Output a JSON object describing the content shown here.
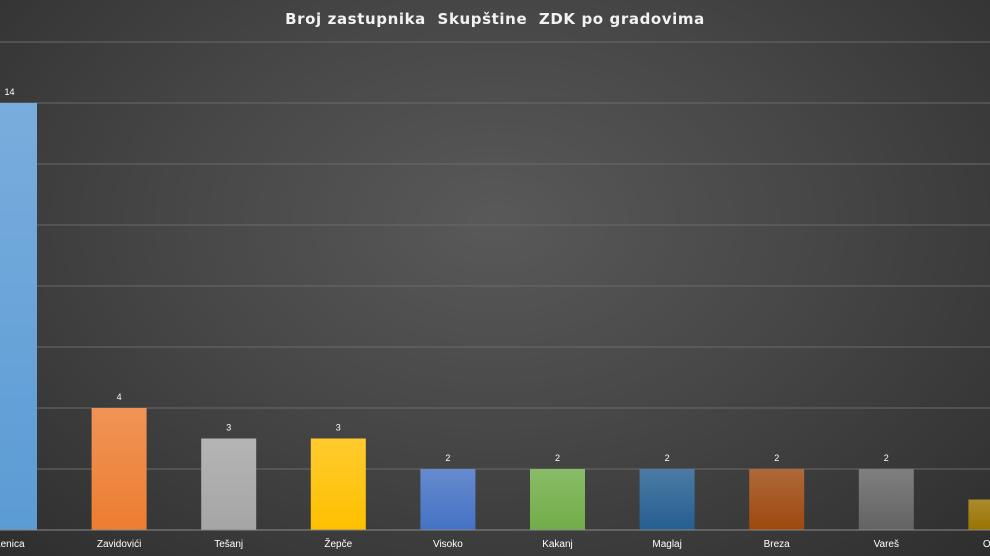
{
  "chart_data": {
    "type": "bar",
    "title": "Broj zastupnika  Skupštine  ZDK po gradovima",
    "xlabel": "",
    "ylabel": "",
    "ylim": [
      0,
      16
    ],
    "grid": true,
    "categories": [
      "Zenica",
      "Zavidovići",
      "Tešanj",
      "Žepče",
      "Visoko",
      "Kakanj",
      "Maglaj",
      "Breza",
      "Vareš",
      "Olovo"
    ],
    "values": [
      14,
      4,
      3,
      3,
      2,
      2,
      2,
      2,
      2,
      1
    ],
    "colors": [
      "#5b9bd5",
      "#ed7d31",
      "#a5a5a5",
      "#ffc000",
      "#4472c4",
      "#70ad47",
      "#255e91",
      "#9e480e",
      "#636363",
      "#997300"
    ]
  }
}
